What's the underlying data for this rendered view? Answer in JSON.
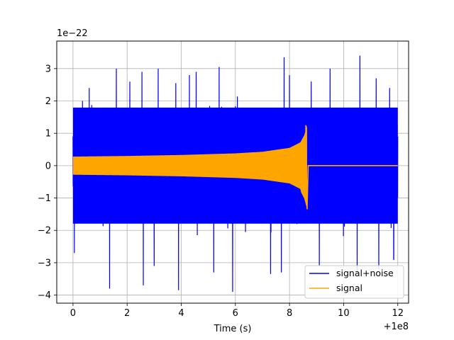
{
  "chart_data": {
    "type": "line",
    "title": "",
    "xlabel": "Time (s)",
    "ylabel": "",
    "x_offset_text": "+1e8",
    "y_scale_text": "1e−22",
    "xlim": [
      -0.6,
      12.4
    ],
    "ylim": [
      -4.25,
      3.85
    ],
    "x_ticks": [
      0,
      2,
      4,
      6,
      8,
      10,
      12
    ],
    "x_tick_labels": [
      "0",
      "2",
      "4",
      "6",
      "8",
      "10",
      "12"
    ],
    "y_ticks": [
      -4,
      -3,
      -2,
      -1,
      0,
      1,
      2,
      3
    ],
    "y_tick_labels": [
      "−4",
      "−3",
      "−2",
      "−1",
      "0",
      "1",
      "2",
      "3"
    ],
    "grid": true,
    "legend_position": "lower-right",
    "series": [
      {
        "name": "signal+noise",
        "color": "#0000ff",
        "description": "dense noisy oscillation",
        "x_range": [
          0,
          12
        ],
        "envelope_typical": [
          -2.3,
          2.3
        ],
        "peaks": [
          {
            "x": 0.35,
            "y": 2.0
          },
          {
            "x": 0.6,
            "y": 2.4
          },
          {
            "x": 1.05,
            "y": 2.95
          },
          {
            "x": 1.6,
            "y": 3.0
          },
          {
            "x": 2.1,
            "y": 2.6
          },
          {
            "x": 2.55,
            "y": 2.9
          },
          {
            "x": 3.15,
            "y": 3.0
          },
          {
            "x": 3.8,
            "y": 2.55
          },
          {
            "x": 4.3,
            "y": 2.8
          },
          {
            "x": 4.55,
            "y": 2.9
          },
          {
            "x": 5.4,
            "y": 3.05
          },
          {
            "x": 5.9,
            "y": 2.7
          },
          {
            "x": 7.8,
            "y": 3.35
          },
          {
            "x": 8.0,
            "y": 2.8
          },
          {
            "x": 8.8,
            "y": 2.6
          },
          {
            "x": 9.5,
            "y": 3.0
          },
          {
            "x": 10.6,
            "y": 3.4
          },
          {
            "x": 11.2,
            "y": 2.7
          },
          {
            "x": 11.7,
            "y": 2.4
          }
        ],
        "troughs": [
          {
            "x": 0.05,
            "y": -2.7
          },
          {
            "x": 1.35,
            "y": -3.8
          },
          {
            "x": 2.6,
            "y": -3.7
          },
          {
            "x": 3.0,
            "y": -3.1
          },
          {
            "x": 3.9,
            "y": -3.85
          },
          {
            "x": 5.2,
            "y": -3.3
          },
          {
            "x": 5.9,
            "y": -3.9
          },
          {
            "x": 7.3,
            "y": -3.35
          },
          {
            "x": 7.7,
            "y": -3.3
          },
          {
            "x": 9.1,
            "y": -3.1
          },
          {
            "x": 10.5,
            "y": -3.3
          },
          {
            "x": 11.3,
            "y": -3.2
          },
          {
            "x": 11.85,
            "y": -2.9
          }
        ]
      },
      {
        "name": "signal",
        "color": "#ffa500",
        "description": "chirp with growing amplitude, merging at about x = 8.65, then zero",
        "x_range": [
          0,
          12
        ],
        "amplitude_envelope": [
          {
            "x": 0,
            "y": 0.28
          },
          {
            "x": 2,
            "y": 0.3
          },
          {
            "x": 4,
            "y": 0.33
          },
          {
            "x": 6,
            "y": 0.38
          },
          {
            "x": 7,
            "y": 0.43
          },
          {
            "x": 8,
            "y": 0.55
          },
          {
            "x": 8.4,
            "y": 0.72
          },
          {
            "x": 8.55,
            "y": 0.95
          },
          {
            "x": 8.65,
            "y": 1.25
          }
        ],
        "min_value": -1.35,
        "max_value": 1.25,
        "merger_x": 8.65,
        "post_merger_value": 0
      }
    ]
  }
}
